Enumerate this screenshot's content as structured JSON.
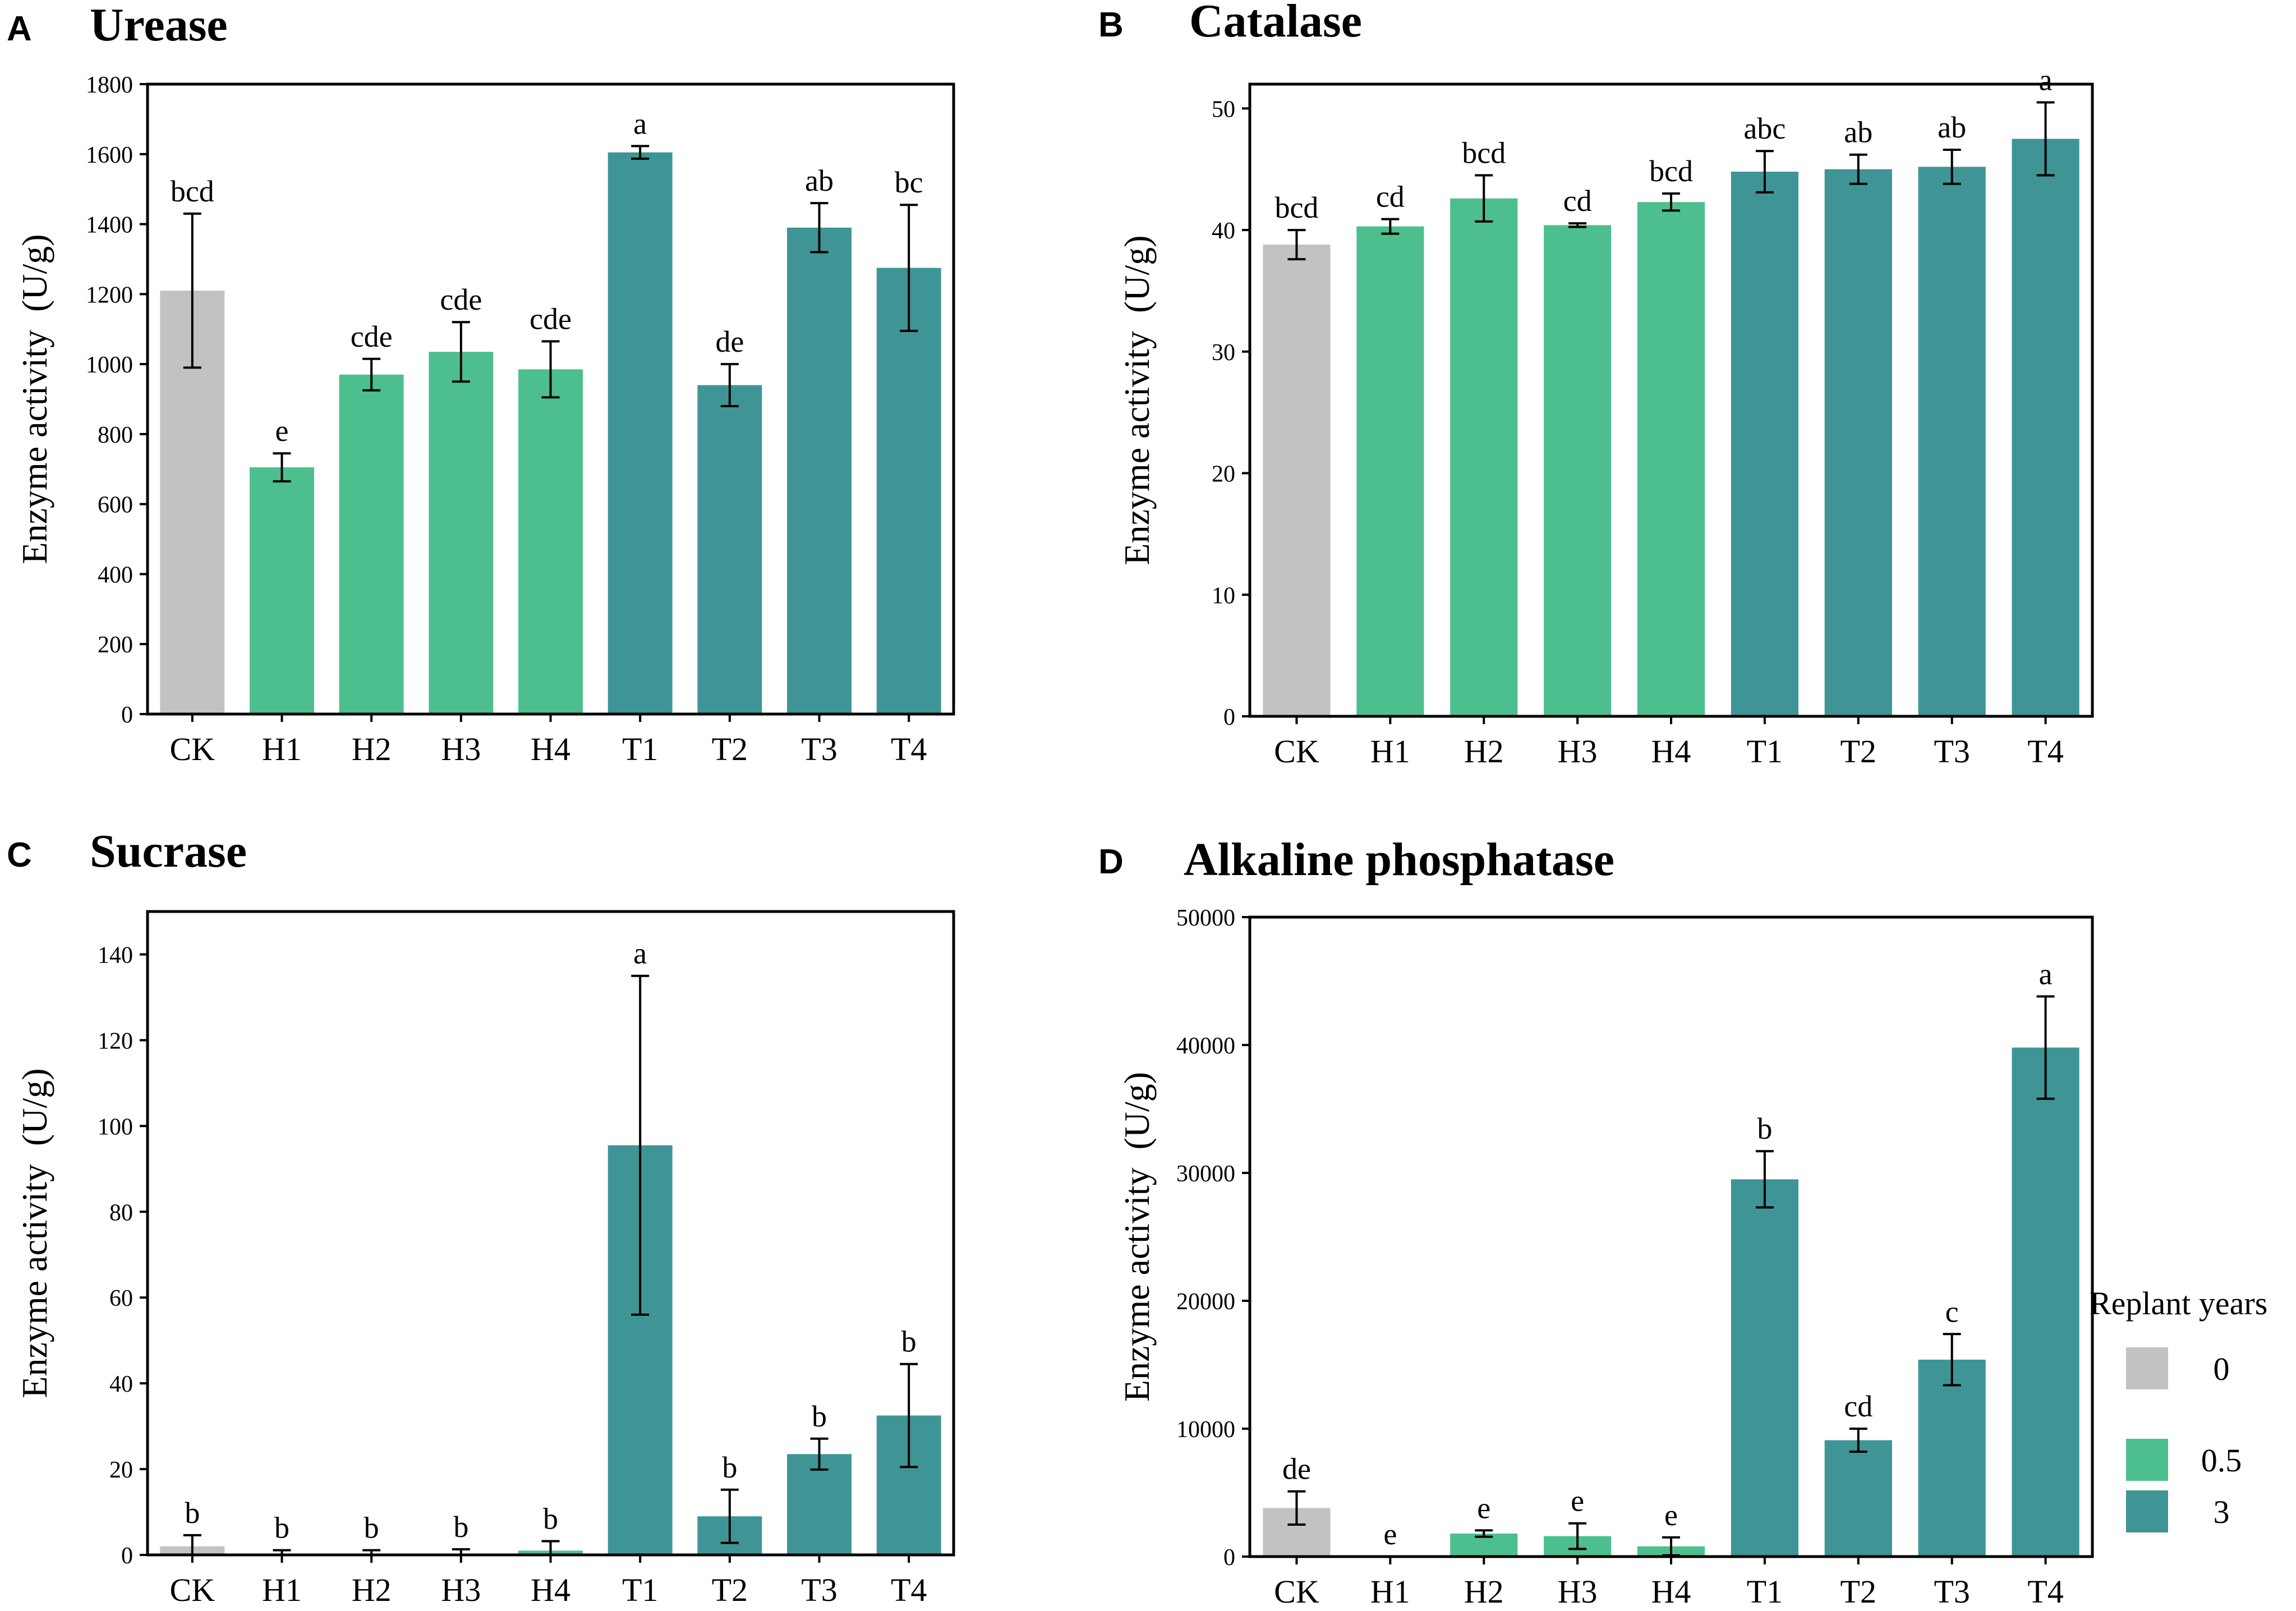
{
  "figure": {
    "legend": {
      "title": "Replant years",
      "entries": [
        {
          "label": "0",
          "color": "#c3c2c0"
        },
        {
          "label": "0.5",
          "color": "#4dbf8e"
        },
        {
          "label": "3",
          "color": "#3f9595"
        }
      ]
    }
  },
  "chart_data": [
    {
      "panel": "A",
      "type": "bar",
      "title": "Urease",
      "ylabel": "Enzyme activity  (U/g)",
      "xlabel": "",
      "ylim": [
        0,
        1800
      ],
      "yticks": [
        0,
        200,
        400,
        600,
        800,
        1000,
        1200,
        1400,
        1600,
        1800
      ],
      "categories": [
        "CK",
        "H1",
        "H2",
        "H3",
        "H4",
        "T1",
        "T2",
        "T3",
        "T4"
      ],
      "values": [
        1210,
        705,
        970,
        1035,
        985,
        1605,
        940,
        1390,
        1275
      ],
      "errors": [
        220,
        40,
        45,
        85,
        80,
        18,
        60,
        70,
        180
      ],
      "significance": [
        "bcd",
        "e",
        "cde",
        "cde",
        "cde",
        "a",
        "de",
        "ab",
        "bc"
      ],
      "groups": [
        "0",
        "0.5",
        "0.5",
        "0.5",
        "0.5",
        "3",
        "3",
        "3",
        "3"
      ]
    },
    {
      "panel": "B",
      "type": "bar",
      "title": "Catalase",
      "ylabel": "Enzyme activity  (U/g)",
      "xlabel": "",
      "ylim": [
        0,
        52
      ],
      "yticks": [
        0,
        10,
        20,
        30,
        40,
        50
      ],
      "categories": [
        "CK",
        "H1",
        "H2",
        "H3",
        "H4",
        "T1",
        "T2",
        "T3",
        "T4"
      ],
      "values": [
        38.8,
        40.3,
        42.6,
        40.4,
        42.3,
        44.8,
        45.0,
        45.2,
        47.5
      ],
      "errors": [
        1.2,
        0.6,
        1.9,
        0.15,
        0.7,
        1.7,
        1.2,
        1.4,
        3.0
      ],
      "significance": [
        "bcd",
        "cd",
        "bcd",
        "cd",
        "bcd",
        "abc",
        "ab",
        "ab",
        "a"
      ],
      "groups": [
        "0",
        "0.5",
        "0.5",
        "0.5",
        "0.5",
        "3",
        "3",
        "3",
        "3"
      ]
    },
    {
      "panel": "C",
      "type": "bar",
      "title": "Sucrase",
      "ylabel": "Enzyme activity  (U/g)",
      "xlabel": "",
      "ylim": [
        0,
        150
      ],
      "yticks": [
        0,
        20,
        40,
        60,
        80,
        100,
        120,
        140
      ],
      "categories": [
        "CK",
        "H1",
        "H2",
        "H3",
        "H4",
        "T1",
        "T2",
        "T3",
        "T4"
      ],
      "values": [
        2.0,
        0.3,
        0.3,
        0.3,
        1.0,
        95.5,
        9.0,
        23.5,
        32.5
      ],
      "errors": [
        2.6,
        0.8,
        0.8,
        1.0,
        2.2,
        39.5,
        6.2,
        3.6,
        12.0
      ],
      "significance": [
        "b",
        "b",
        "b",
        "b",
        "b",
        "a",
        "b",
        "b",
        "b"
      ],
      "groups": [
        "0",
        "0.5",
        "0.5",
        "0.5",
        "0.5",
        "3",
        "3",
        "3",
        "3"
      ]
    },
    {
      "panel": "D",
      "type": "bar",
      "title": "Alkaline phosphatase",
      "ylabel": "Enzyme activity  (U/g)",
      "xlabel": "",
      "ylim": [
        0,
        50000
      ],
      "yticks": [
        0,
        10000,
        20000,
        30000,
        40000,
        50000
      ],
      "categories": [
        "CK",
        "H1",
        "H2",
        "H3",
        "H4",
        "T1",
        "T2",
        "T3",
        "T4"
      ],
      "values": [
        3800,
        0,
        1800,
        1600,
        800,
        29500,
        9100,
        15400,
        39800
      ],
      "errors": [
        1300,
        0,
        250,
        1000,
        700,
        2200,
        900,
        2000,
        4000
      ],
      "significance": [
        "de",
        "e",
        "e",
        "e",
        "e",
        "b",
        "cd",
        "c",
        "a"
      ],
      "groups": [
        "0",
        "0.5",
        "0.5",
        "0.5",
        "0.5",
        "3",
        "3",
        "3",
        "3"
      ]
    }
  ]
}
